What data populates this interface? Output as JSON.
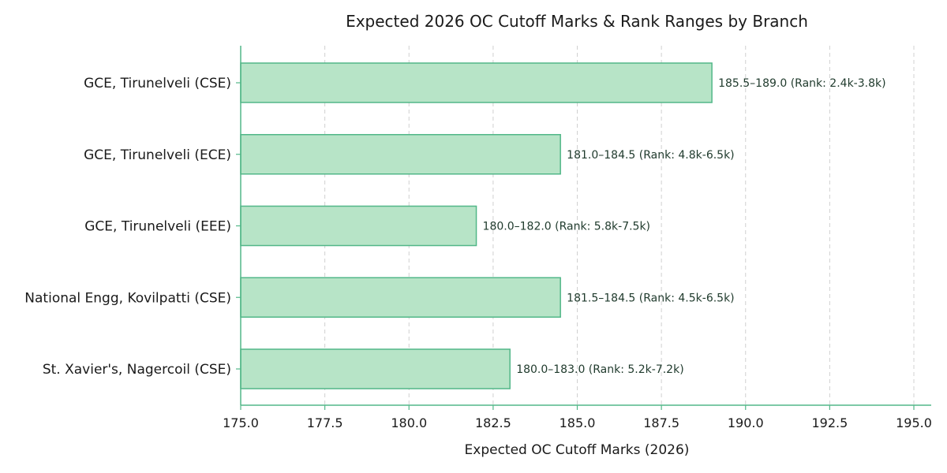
{
  "colors": {
    "bar_fill": "#b7e4c7",
    "bar_stroke": "#52b788",
    "axis": "#52b788",
    "grid": "#d0d0d0",
    "text": "#1a1a1a"
  },
  "chart_data": {
    "type": "bar",
    "orientation": "horizontal",
    "title": "Expected 2026 OC Cutoff Marks & Rank Ranges by Branch",
    "xlabel": "Expected OC Cutoff Marks (2026)",
    "ylabel": "",
    "xlim": [
      175.0,
      195.0
    ],
    "xticks": [
      "175.0",
      "177.5",
      "180.0",
      "182.5",
      "185.0",
      "187.5",
      "190.0",
      "192.5",
      "195.0"
    ],
    "grid": "x-dashed",
    "categories": [
      "GCE, Tirunelveli (CSE)",
      "GCE, Tirunelveli (ECE)",
      "GCE, Tirunelveli (EEE)",
      "National Engg, Kovilpatti (CSE)",
      "St. Xavier's, Nagercoil (CSE)"
    ],
    "values": [
      189.0,
      184.5,
      182.0,
      184.5,
      183.0
    ],
    "annotations": [
      "185.5–189.0 (Rank: 2.4k-3.8k)",
      "181.0–184.5 (Rank: 4.8k-6.5k)",
      "180.0–182.0 (Rank: 5.8k-7.5k)",
      "181.5–184.5 (Rank: 4.5k-6.5k)",
      "180.0–183.0 (Rank: 5.2k-7.2k)"
    ]
  }
}
